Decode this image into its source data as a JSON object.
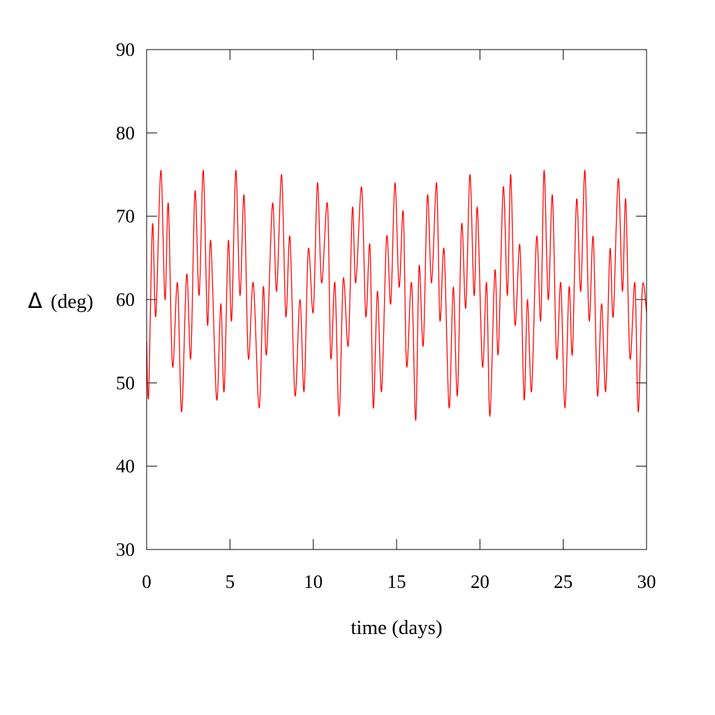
{
  "chart_data": {
    "type": "line",
    "title": "",
    "xlabel": "time (days)",
    "ylabel_symbol": "Δ",
    "ylabel_unit": "(deg)",
    "xlim": [
      0,
      30
    ],
    "ylim": [
      30,
      90
    ],
    "x_ticks": [
      0,
      5,
      10,
      15,
      20,
      25,
      30
    ],
    "y_ticks": [
      30,
      40,
      50,
      60,
      70,
      80,
      90
    ],
    "grid": false,
    "legend": "none",
    "series": [
      {
        "color": "#ff0000",
        "x": [
          0.0,
          0.12,
          0.35,
          0.55,
          0.85,
          1.1,
          1.3,
          1.55,
          1.85,
          2.1,
          2.4,
          2.65,
          2.9,
          3.15,
          3.4,
          3.65,
          3.85,
          4.2,
          4.45,
          4.65,
          4.9,
          5.1,
          5.35,
          5.6,
          5.85,
          6.1,
          6.4,
          6.75,
          7.0,
          7.2,
          7.55,
          7.8,
          8.1,
          8.35,
          8.6,
          8.9,
          9.2,
          9.45,
          9.7,
          10.0,
          10.25,
          10.5,
          10.85,
          11.05,
          11.3,
          11.55,
          11.8,
          12.1,
          12.35,
          12.55,
          12.9,
          13.15,
          13.4,
          13.6,
          13.85,
          14.1,
          14.4,
          14.65,
          14.9,
          15.15,
          15.4,
          15.6,
          15.9,
          16.15,
          16.35,
          16.6,
          16.85,
          17.1,
          17.4,
          17.6,
          17.85,
          18.15,
          18.4,
          18.65,
          18.9,
          19.15,
          19.4,
          19.65,
          19.85,
          20.15,
          20.4,
          20.6,
          20.9,
          21.1,
          21.4,
          21.65,
          21.85,
          22.1,
          22.4,
          22.65,
          22.85,
          23.1,
          23.4,
          23.65,
          23.85,
          24.1,
          24.35,
          24.6,
          24.85,
          25.1,
          25.35,
          25.55,
          25.8,
          26.05,
          26.3,
          26.55,
          26.8,
          27.05,
          27.3,
          27.55,
          27.8,
          28.0,
          28.3,
          28.55,
          28.75,
          29.0,
          29.3,
          29.5,
          29.75,
          30.0
        ],
        "y": [
          55.0,
          48.5,
          69.0,
          58.0,
          75.5,
          60.0,
          71.5,
          52.0,
          62.0,
          46.5,
          63.0,
          53.0,
          73.0,
          60.5,
          75.5,
          57.0,
          67.0,
          48.0,
          59.5,
          49.0,
          67.0,
          57.5,
          75.5,
          60.5,
          72.5,
          53.0,
          62.0,
          47.0,
          61.5,
          53.5,
          71.5,
          61.0,
          75.0,
          58.0,
          67.5,
          48.5,
          60.0,
          49.0,
          66.0,
          58.5,
          74.0,
          62.0,
          71.5,
          53.0,
          62.0,
          46.0,
          62.5,
          54.5,
          71.0,
          62.0,
          73.5,
          58.0,
          66.5,
          47.0,
          61.0,
          49.0,
          67.5,
          59.5,
          74.0,
          61.5,
          70.5,
          52.0,
          62.0,
          45.5,
          64.0,
          54.5,
          72.5,
          62.0,
          74.0,
          57.5,
          66.0,
          47.0,
          61.5,
          48.5,
          69.0,
          59.0,
          75.0,
          60.5,
          71.0,
          52.0,
          62.0,
          46.0,
          63.5,
          53.5,
          73.5,
          60.5,
          75.0,
          57.0,
          66.5,
          48.0,
          60.0,
          49.0,
          67.5,
          57.5,
          75.5,
          60.0,
          72.5,
          53.0,
          62.0,
          47.0,
          61.5,
          53.5,
          72.0,
          61.0,
          75.5,
          57.5,
          67.5,
          48.5,
          59.5,
          49.0,
          66.0,
          58.0,
          74.5,
          61.0,
          72.0,
          53.0,
          62.0,
          46.5,
          61.5,
          58.5
        ]
      }
    ]
  }
}
